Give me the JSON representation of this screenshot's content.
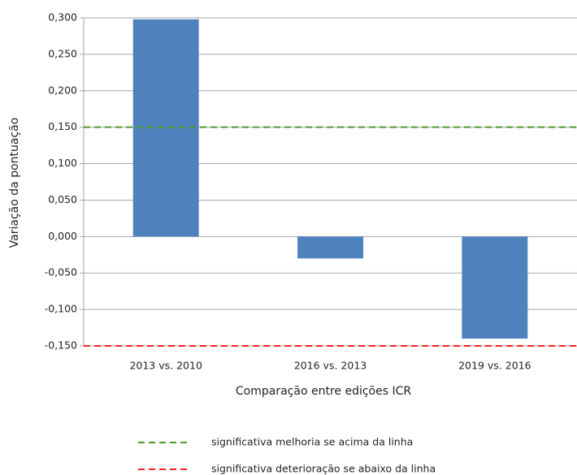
{
  "chart_data": {
    "type": "bar",
    "x_label": "Comparação entre edições ICR",
    "y_label": "Variação da pontuação",
    "categories": [
      "2013 vs. 2010",
      "2016 vs. 2013",
      "2019 vs. 2016"
    ],
    "values": [
      0.298,
      -0.03,
      -0.14
    ],
    "color": "#4f81bd",
    "ylim": [
      -0.15,
      0.3
    ],
    "yticks": [
      {
        "value": -0.15,
        "label": "-0,150"
      },
      {
        "value": -0.1,
        "label": "-0,100"
      },
      {
        "value": -0.05,
        "label": "-0,050"
      },
      {
        "value": 0,
        "label": "0,000"
      },
      {
        "value": 0.05,
        "label": "0,050"
      },
      {
        "value": 0.1,
        "label": "0,100"
      },
      {
        "value": 0.15,
        "label": "0,150"
      },
      {
        "value": 0.2,
        "label": "0,200"
      },
      {
        "value": 0.25,
        "label": "0,250"
      },
      {
        "value": 0.3,
        "label": "0,300"
      }
    ],
    "grid": true,
    "reference_lines": [
      {
        "name": "significativa melhoria se acima da linha",
        "value": 0.15,
        "color": "#4e9a2a"
      },
      {
        "name": "significativa deterioração se abaixo da linha",
        "value": -0.15,
        "color": "#ff2020"
      }
    ]
  }
}
